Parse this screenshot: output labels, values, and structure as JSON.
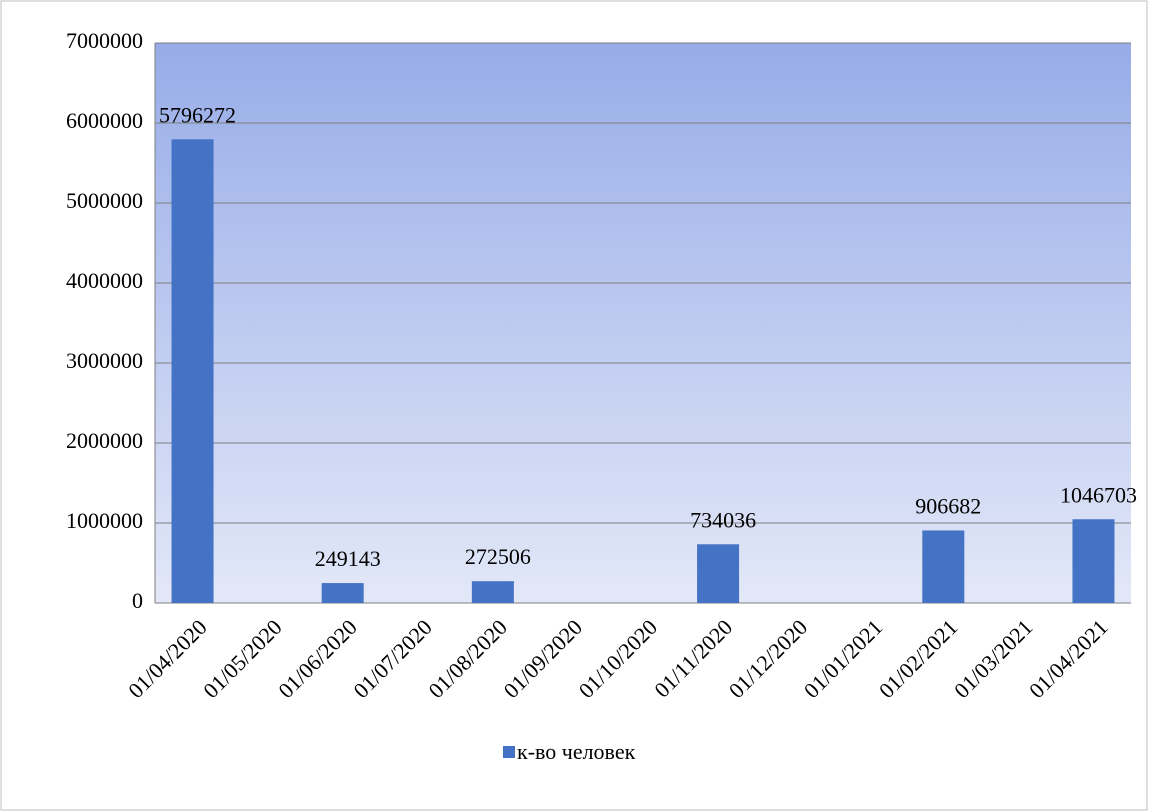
{
  "chart_data": {
    "type": "bar",
    "categories": [
      "01/04/2020",
      "01/05/2020",
      "01/06/2020",
      "01/07/2020",
      "01/08/2020",
      "01/09/2020",
      "01/10/2020",
      "01/11/2020",
      "01/12/2020",
      "01/01/2021",
      "01/02/2021",
      "01/03/2021",
      "01/04/2021"
    ],
    "series": [
      {
        "name": "к-во человек",
        "color": "#4472c4",
        "values": [
          5796272,
          null,
          249143,
          null,
          272506,
          null,
          null,
          734036,
          null,
          null,
          906682,
          null,
          1046703
        ]
      }
    ],
    "ylim": [
      0,
      7000000
    ],
    "yticks": [
      0,
      1000000,
      2000000,
      3000000,
      4000000,
      5000000,
      6000000,
      7000000
    ],
    "grid": true,
    "legend": "bottom",
    "data_labels": true
  }
}
